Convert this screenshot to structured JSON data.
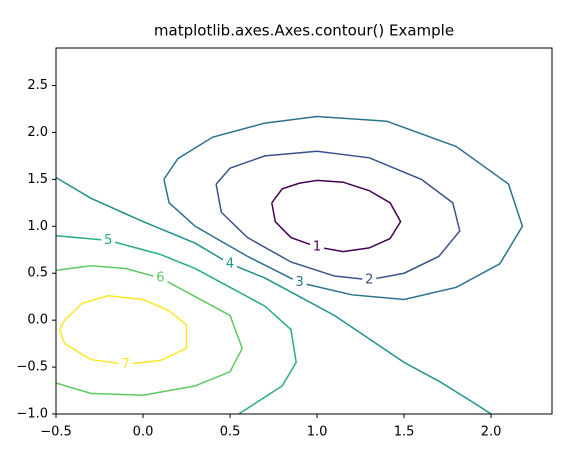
{
  "chart_data": {
    "type": "contour",
    "title": "matplotlib.axes.Axes.contour() Example",
    "xlim": [
      -0.5,
      2.35
    ],
    "ylim": [
      -1.0,
      2.9
    ],
    "xticks": [
      {
        "value": -0.5,
        "label": "−0.5"
      },
      {
        "value": 0,
        "label": "0.0"
      },
      0.5,
      {
        "value": 1,
        "label": "1.0"
      },
      1.5,
      {
        "value": 2,
        "label": "2.0"
      }
    ],
    "yticks": [
      {
        "value": -1,
        "label": "−1.0"
      },
      {
        "value": -0.5,
        "label": "−0.5"
      },
      {
        "value": 0,
        "label": "0.0"
      },
      0.5,
      {
        "value": 1,
        "label": "1.0"
      },
      1.5,
      {
        "value": 2,
        "label": "2.0"
      },
      2.5
    ],
    "series": [
      {
        "level": 1,
        "color": "#440154",
        "x": [
          0.74,
          0.8,
          0.9,
          1.0,
          1.15,
          1.3,
          1.42,
          1.48,
          1.42,
          1.3,
          1.15,
          1.0,
          0.85,
          0.76,
          0.74
        ],
        "y": [
          1.25,
          1.4,
          1.46,
          1.49,
          1.47,
          1.38,
          1.25,
          1.05,
          0.87,
          0.77,
          0.73,
          0.78,
          0.88,
          1.05,
          1.25
        ]
      },
      {
        "level": 2,
        "color": "#3b528b",
        "x": [
          0.42,
          0.5,
          0.7,
          1.0,
          1.3,
          1.6,
          1.78,
          1.82,
          1.7,
          1.5,
          1.3,
          1.1,
          0.85,
          0.6,
          0.45,
          0.42
        ],
        "y": [
          1.45,
          1.62,
          1.75,
          1.8,
          1.73,
          1.5,
          1.25,
          0.95,
          0.68,
          0.5,
          0.43,
          0.47,
          0.62,
          0.88,
          1.15,
          1.45
        ]
      },
      {
        "level": 3,
        "color": "#2c728e",
        "x": [
          0.12,
          0.2,
          0.4,
          0.7,
          1.0,
          1.4,
          1.8,
          2.1,
          2.18,
          2.05,
          1.8,
          1.5,
          1.2,
          0.9,
          0.6,
          0.3,
          0.15,
          0.12
        ],
        "y": [
          1.5,
          1.72,
          1.95,
          2.1,
          2.17,
          2.12,
          1.85,
          1.45,
          1.0,
          0.6,
          0.35,
          0.22,
          0.27,
          0.4,
          0.68,
          1.0,
          1.25,
          1.5
        ]
      },
      {
        "level": 4,
        "color": "#21918c",
        "x": [
          -0.5,
          -0.3,
          0,
          0.3,
          0.5,
          0.7,
          0.9,
          1.1,
          1.3,
          1.5,
          1.7,
          1.9,
          2.0
        ],
        "y": [
          1.52,
          1.3,
          1.05,
          0.82,
          0.6,
          0.45,
          0.25,
          0.05,
          -0.2,
          -0.45,
          -0.65,
          -0.88,
          -1.0
        ]
      },
      {
        "level": 5,
        "color": "#27ad81",
        "x": [
          -0.5,
          -0.2,
          0.1,
          0.3,
          0.5,
          0.7,
          0.85,
          0.88,
          0.8,
          0.55
        ],
        "y": [
          0.9,
          0.85,
          0.7,
          0.55,
          0.35,
          0.15,
          -0.1,
          -0.45,
          -0.7,
          -1.0
        ]
      },
      {
        "level": 6,
        "color": "#5ec962",
        "x": [
          -0.5,
          -0.3,
          -0.1,
          0.1,
          0.3,
          0.5,
          0.57,
          0.5,
          0.3,
          0.0,
          -0.3,
          -0.5
        ],
        "y": [
          0.53,
          0.58,
          0.55,
          0.45,
          0.25,
          0.05,
          -0.3,
          -0.55,
          -0.7,
          -0.8,
          -0.78,
          -0.67
        ]
      },
      {
        "level": 7,
        "color": "#fde725",
        "x": [
          -0.45,
          -0.35,
          -0.2,
          0.0,
          0.15,
          0.25,
          0.25,
          0.1,
          -0.1,
          -0.3,
          -0.45,
          -0.48,
          -0.45
        ],
        "y": [
          0.0,
          0.18,
          0.26,
          0.22,
          0.1,
          -0.05,
          -0.3,
          -0.43,
          -0.47,
          -0.42,
          -0.25,
          -0.1,
          0.0
        ]
      }
    ]
  }
}
